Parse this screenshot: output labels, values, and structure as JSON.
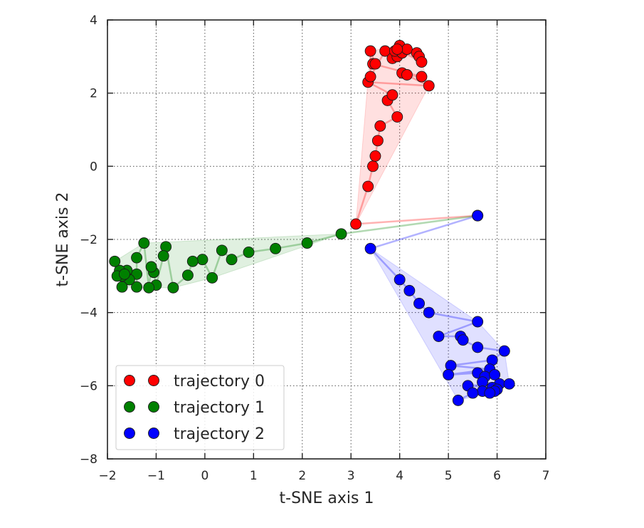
{
  "chart_data": {
    "type": "scatter",
    "xlabel": "t-SNE axis 1",
    "ylabel": "t-SNE axis 2",
    "xlim": [
      -2,
      7
    ],
    "ylim": [
      -8,
      4
    ],
    "xticks": [
      -2,
      -1,
      0,
      1,
      2,
      3,
      4,
      5,
      6,
      7
    ],
    "yticks": [
      -8,
      -6,
      -4,
      -2,
      0,
      2,
      4
    ],
    "xtick_labels": [
      "−2",
      "−1",
      "0",
      "1",
      "2",
      "3",
      "4",
      "5",
      "6",
      "7"
    ],
    "ytick_labels": [
      "−8",
      "−6",
      "−4",
      "−2",
      "0",
      "2",
      "4"
    ],
    "grid": true,
    "legend_position": "bottom-left",
    "series": [
      {
        "name": "trajectory 0",
        "color": "#ff0000",
        "points": [
          [
            5.6,
            -1.35
          ],
          [
            3.1,
            -1.58
          ],
          [
            3.35,
            -0.55
          ],
          [
            3.45,
            0.0
          ],
          [
            3.5,
            0.28
          ],
          [
            3.55,
            0.7
          ],
          [
            3.6,
            1.1
          ],
          [
            3.95,
            1.35
          ],
          [
            3.75,
            1.8
          ],
          [
            3.85,
            1.95
          ],
          [
            3.35,
            2.3
          ],
          [
            4.6,
            2.2
          ],
          [
            4.05,
            2.55
          ],
          [
            4.15,
            2.5
          ],
          [
            4.45,
            2.45
          ],
          [
            3.45,
            2.8
          ],
          [
            3.5,
            2.8
          ],
          [
            3.4,
            3.15
          ],
          [
            3.4,
            2.45
          ],
          [
            3.7,
            3.15
          ],
          [
            3.85,
            2.95
          ],
          [
            3.95,
            3.0
          ],
          [
            3.9,
            3.15
          ],
          [
            4.0,
            3.3
          ],
          [
            4.05,
            3.1
          ],
          [
            4.15,
            3.2
          ],
          [
            4.35,
            3.1
          ],
          [
            4.4,
            3.0
          ],
          [
            3.95,
            3.2
          ],
          [
            4.45,
            2.85
          ]
        ]
      },
      {
        "name": "trajectory 1",
        "color": "#008000",
        "points": [
          [
            5.6,
            -1.35
          ],
          [
            2.8,
            -1.85
          ],
          [
            2.1,
            -2.1
          ],
          [
            1.45,
            -2.25
          ],
          [
            0.9,
            -2.35
          ],
          [
            0.55,
            -2.55
          ],
          [
            0.35,
            -2.3
          ],
          [
            0.15,
            -3.05
          ],
          [
            -0.05,
            -2.55
          ],
          [
            -0.25,
            -2.6
          ],
          [
            -0.35,
            -2.98
          ],
          [
            -0.65,
            -3.32
          ],
          [
            -0.8,
            -2.2
          ],
          [
            -0.85,
            -2.45
          ],
          [
            -1.0,
            -3.25
          ],
          [
            -1.05,
            -2.9
          ],
          [
            -1.1,
            -2.75
          ],
          [
            -1.15,
            -3.32
          ],
          [
            -1.25,
            -2.1
          ],
          [
            -1.4,
            -2.5
          ],
          [
            -1.4,
            -2.95
          ],
          [
            -1.4,
            -3.3
          ],
          [
            -1.55,
            -3.1
          ],
          [
            -1.6,
            -2.85
          ],
          [
            -1.7,
            -3.0
          ],
          [
            -1.7,
            -3.3
          ],
          [
            -1.75,
            -2.85
          ],
          [
            -1.8,
            -3.0
          ],
          [
            -1.85,
            -2.6
          ],
          [
            -1.65,
            -2.95
          ]
        ]
      },
      {
        "name": "trajectory 2",
        "color": "#0000ff",
        "points": [
          [
            5.6,
            -1.35
          ],
          [
            3.4,
            -2.25
          ],
          [
            4.0,
            -3.1
          ],
          [
            4.2,
            -3.4
          ],
          [
            4.4,
            -3.75
          ],
          [
            4.6,
            -4.0
          ],
          [
            5.6,
            -4.25
          ],
          [
            4.8,
            -4.65
          ],
          [
            5.25,
            -4.65
          ],
          [
            5.3,
            -4.75
          ],
          [
            5.6,
            -4.95
          ],
          [
            6.15,
            -5.05
          ],
          [
            5.9,
            -5.3
          ],
          [
            5.05,
            -5.45
          ],
          [
            5.85,
            -5.55
          ],
          [
            5.0,
            -5.7
          ],
          [
            5.6,
            -5.65
          ],
          [
            5.75,
            -5.75
          ],
          [
            5.95,
            -5.7
          ],
          [
            5.7,
            -5.9
          ],
          [
            6.05,
            -5.95
          ],
          [
            6.25,
            -5.95
          ],
          [
            5.4,
            -6.0
          ],
          [
            5.9,
            -6.05
          ],
          [
            6.0,
            -6.1
          ],
          [
            5.7,
            -6.15
          ],
          [
            5.95,
            -6.15
          ],
          [
            5.85,
            -6.2
          ],
          [
            5.5,
            -6.2
          ],
          [
            5.2,
            -6.4
          ]
        ]
      }
    ]
  }
}
